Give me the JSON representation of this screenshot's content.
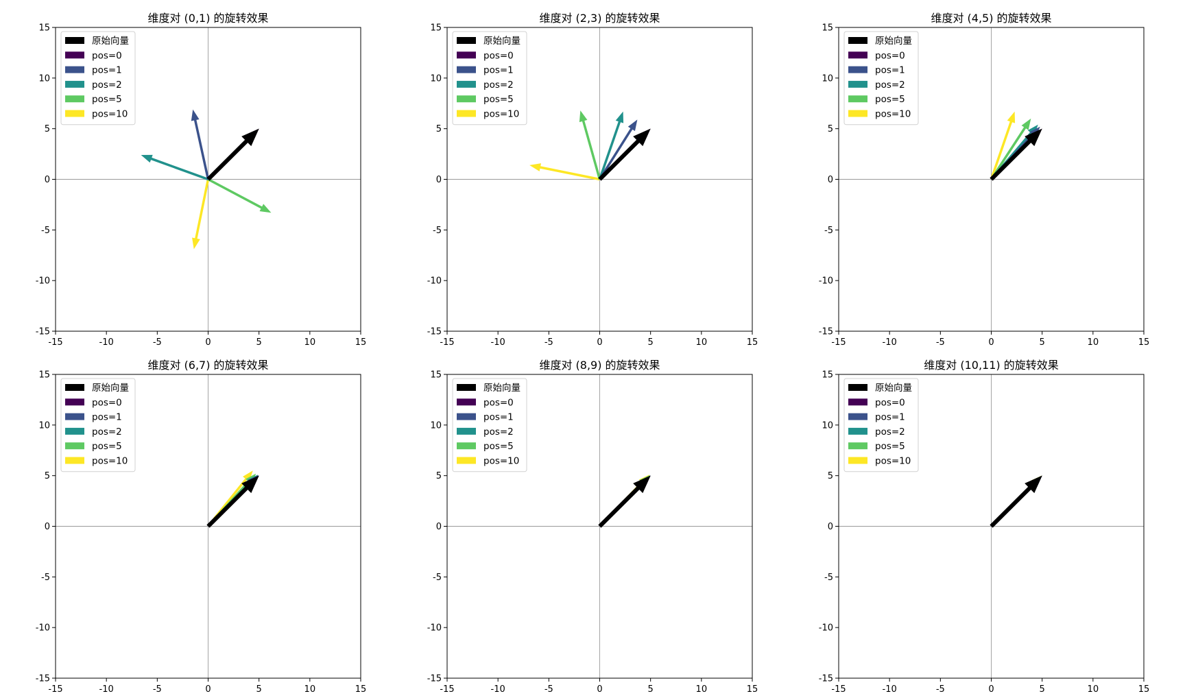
{
  "chart_data": [
    {
      "type": "quiver",
      "title": "维度对 (0,1) 的旋转效果",
      "xlim": [
        -15,
        15
      ],
      "ylim": [
        -15,
        15
      ],
      "xticks": [
        -15,
        -10,
        -5,
        0,
        5,
        10,
        15
      ],
      "yticks": [
        -15,
        -10,
        -5,
        0,
        5,
        10,
        15
      ],
      "xtick_labels": [
        "-15",
        "-10",
        "-5",
        "0",
        "5",
        "10",
        "15"
      ],
      "ytick_labels": [
        "-15",
        "-10",
        "-5",
        "0",
        "5",
        "10",
        "15"
      ],
      "legend": "upper-left",
      "vectors": [
        {
          "name": "原始向量",
          "color": "#000000",
          "x": 5,
          "y": 5,
          "original": true
        },
        {
          "name": "pos=0",
          "color": "#440154",
          "x": 5,
          "y": 5
        },
        {
          "name": "pos=1",
          "color": "#3b528b",
          "x": -1.5,
          "y": 6.9
        },
        {
          "name": "pos=2",
          "color": "#21918c",
          "x": -6.6,
          "y": 2.4
        },
        {
          "name": "pos=5",
          "color": "#5ec962",
          "x": 6.2,
          "y": -3.3
        },
        {
          "name": "pos=10",
          "color": "#fde725",
          "x": -1.4,
          "y": -6.9
        }
      ]
    },
    {
      "type": "quiver",
      "title": "维度对 (2,3) 的旋转效果",
      "xlim": [
        -15,
        15
      ],
      "ylim": [
        -15,
        15
      ],
      "xticks": [
        -15,
        -10,
        -5,
        0,
        5,
        10,
        15
      ],
      "yticks": [
        -15,
        -10,
        -5,
        0,
        5,
        10,
        15
      ],
      "xtick_labels": [
        "-15",
        "-10",
        "-5",
        "0",
        "5",
        "10",
        "15"
      ],
      "ytick_labels": [
        "-15",
        "-10",
        "-5",
        "0",
        "5",
        "10",
        "15"
      ],
      "legend": "upper-left",
      "vectors": [
        {
          "name": "原始向量",
          "color": "#000000",
          "x": 5,
          "y": 5,
          "original": true
        },
        {
          "name": "pos=0",
          "color": "#440154",
          "x": 5,
          "y": 5
        },
        {
          "name": "pos=1",
          "color": "#3b528b",
          "x": 3.7,
          "y": 5.9
        },
        {
          "name": "pos=2",
          "color": "#21918c",
          "x": 2.3,
          "y": 6.7
        },
        {
          "name": "pos=5",
          "color": "#5ec962",
          "x": -1.9,
          "y": 6.8
        },
        {
          "name": "pos=10",
          "color": "#fde725",
          "x": -6.9,
          "y": 1.4
        }
      ]
    },
    {
      "type": "quiver",
      "title": "维度对 (4,5) 的旋转效果",
      "xlim": [
        -15,
        15
      ],
      "ylim": [
        -15,
        15
      ],
      "xticks": [
        -15,
        -10,
        -5,
        0,
        5,
        10,
        15
      ],
      "yticks": [
        -15,
        -10,
        -5,
        0,
        5,
        10,
        15
      ],
      "xtick_labels": [
        "-15",
        "-10",
        "-5",
        "0",
        "5",
        "10",
        "15"
      ],
      "ytick_labels": [
        "-15",
        "-10",
        "-5",
        "0",
        "5",
        "10",
        "15"
      ],
      "legend": "upper-left",
      "vectors": [
        {
          "name": "原始向量",
          "color": "#000000",
          "x": 5,
          "y": 5,
          "original": true
        },
        {
          "name": "pos=0",
          "color": "#440154",
          "x": 5,
          "y": 5
        },
        {
          "name": "pos=1",
          "color": "#3b528b",
          "x": 4.8,
          "y": 5.2
        },
        {
          "name": "pos=2",
          "color": "#21918c",
          "x": 4.6,
          "y": 5.4
        },
        {
          "name": "pos=5",
          "color": "#5ec962",
          "x": 3.9,
          "y": 6.0
        },
        {
          "name": "pos=10",
          "color": "#fde725",
          "x": 2.3,
          "y": 6.7
        }
      ]
    },
    {
      "type": "quiver",
      "title": "维度对 (6,7) 的旋转效果",
      "xlim": [
        -15,
        15
      ],
      "ylim": [
        -15,
        15
      ],
      "xticks": [
        -15,
        -10,
        -5,
        0,
        5,
        10,
        15
      ],
      "yticks": [
        -15,
        -10,
        -5,
        0,
        5,
        10,
        15
      ],
      "xtick_labels": [
        "-15",
        "-10",
        "-5",
        "0",
        "5",
        "10",
        "15"
      ],
      "ytick_labels": [
        "-15",
        "-10",
        "-5",
        "0",
        "5",
        "10",
        "15"
      ],
      "legend": "upper-left",
      "vectors": [
        {
          "name": "原始向量",
          "color": "#000000",
          "x": 5,
          "y": 5,
          "original": true
        },
        {
          "name": "pos=0",
          "color": "#440154",
          "x": 5,
          "y": 5
        },
        {
          "name": "pos=1",
          "color": "#3b528b",
          "x": 4.95,
          "y": 5.05
        },
        {
          "name": "pos=2",
          "color": "#21918c",
          "x": 4.9,
          "y": 5.1
        },
        {
          "name": "pos=5",
          "color": "#5ec962",
          "x": 4.7,
          "y": 5.2
        },
        {
          "name": "pos=10",
          "color": "#fde725",
          "x": 4.4,
          "y": 5.5
        }
      ]
    },
    {
      "type": "quiver",
      "title": "维度对 (8,9) 的旋转效果",
      "xlim": [
        -15,
        15
      ],
      "ylim": [
        -15,
        15
      ],
      "xticks": [
        -15,
        -10,
        -5,
        0,
        5,
        10,
        15
      ],
      "yticks": [
        -15,
        -10,
        -5,
        0,
        5,
        10,
        15
      ],
      "xtick_labels": [
        "-15",
        "-10",
        "-5",
        "0",
        "5",
        "10",
        "15"
      ],
      "ytick_labels": [
        "-15",
        "-10",
        "-5",
        "0",
        "5",
        "10",
        "15"
      ],
      "legend": "upper-left",
      "vectors": [
        {
          "name": "原始向量",
          "color": "#000000",
          "x": 5,
          "y": 5,
          "original": true
        },
        {
          "name": "pos=0",
          "color": "#440154",
          "x": 5,
          "y": 5
        },
        {
          "name": "pos=1",
          "color": "#3b528b",
          "x": 5,
          "y": 5
        },
        {
          "name": "pos=2",
          "color": "#21918c",
          "x": 4.99,
          "y": 5.01
        },
        {
          "name": "pos=5",
          "color": "#5ec962",
          "x": 4.95,
          "y": 5.05
        },
        {
          "name": "pos=10",
          "color": "#fde725",
          "x": 4.9,
          "y": 5.1
        }
      ]
    },
    {
      "type": "quiver",
      "title": "维度对 (10,11) 的旋转效果",
      "xlim": [
        -15,
        15
      ],
      "ylim": [
        -15,
        15
      ],
      "xticks": [
        -15,
        -10,
        -5,
        0,
        5,
        10,
        15
      ],
      "yticks": [
        -15,
        -10,
        -5,
        0,
        5,
        10,
        15
      ],
      "xtick_labels": [
        "-15",
        "-10",
        "-5",
        "0",
        "5",
        "10",
        "15"
      ],
      "ytick_labels": [
        "-15",
        "-10",
        "-5",
        "0",
        "5",
        "10",
        "15"
      ],
      "legend": "upper-left",
      "vectors": [
        {
          "name": "原始向量",
          "color": "#000000",
          "x": 5,
          "y": 5,
          "original": true
        },
        {
          "name": "pos=0",
          "color": "#440154",
          "x": 5,
          "y": 5
        },
        {
          "name": "pos=1",
          "color": "#3b528b",
          "x": 5,
          "y": 5
        },
        {
          "name": "pos=2",
          "color": "#21918c",
          "x": 5,
          "y": 5
        },
        {
          "name": "pos=5",
          "color": "#5ec962",
          "x": 4.99,
          "y": 5.01
        },
        {
          "name": "pos=10",
          "color": "#fde725",
          "x": 4.98,
          "y": 5.02
        }
      ]
    }
  ]
}
